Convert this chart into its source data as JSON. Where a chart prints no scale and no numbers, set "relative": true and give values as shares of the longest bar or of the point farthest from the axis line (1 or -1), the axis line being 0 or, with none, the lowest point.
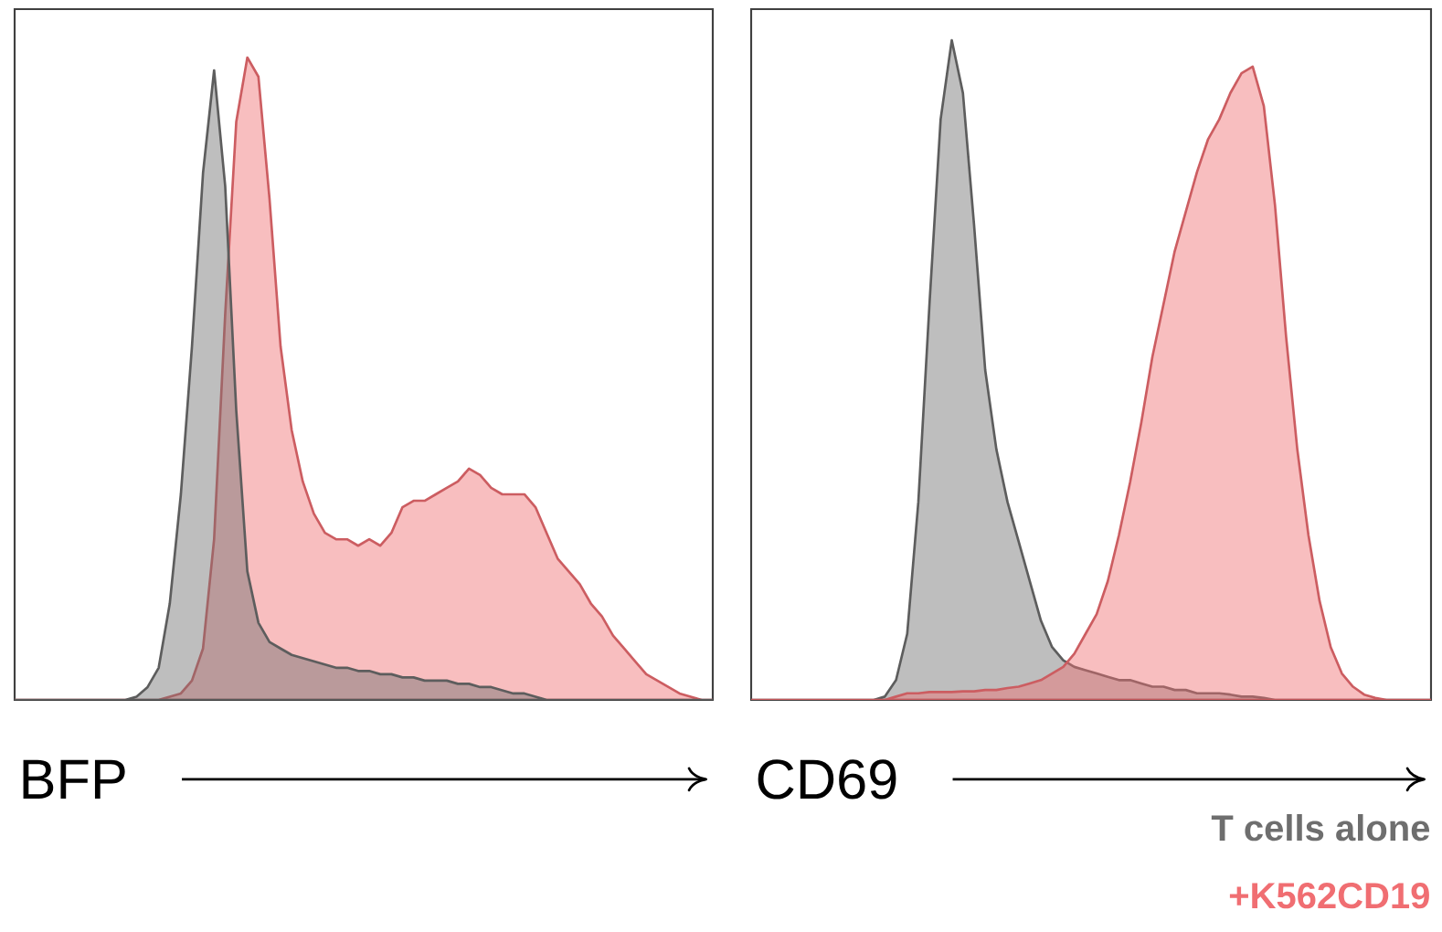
{
  "chart_data": [
    {
      "type": "area",
      "relative": true,
      "xlabel": "BFP",
      "categories": [
        null,
        null,
        null,
        null,
        null,
        null,
        null,
        null,
        null,
        null,
        null,
        null,
        null,
        null,
        null,
        null,
        null,
        null,
        null,
        null,
        null,
        null,
        null,
        null,
        null,
        null,
        null,
        null,
        null,
        null,
        null,
        null,
        null,
        null,
        null,
        null,
        null,
        null,
        null,
        null,
        null,
        null,
        null,
        null,
        null,
        null,
        null,
        null,
        null,
        null,
        null,
        null,
        null,
        null,
        null,
        null,
        null,
        null,
        null,
        null,
        null,
        null,
        null,
        null
      ],
      "series": [
        {
          "color": "#f06e72",
          "values": [
            0,
            0,
            0,
            0,
            0,
            0,
            0,
            0,
            0,
            0,
            0,
            0,
            0,
            0,
            0.005,
            0.01,
            0.03,
            0.08,
            0.25,
            0.6,
            0.9,
            1.0,
            0.97,
            0.78,
            0.55,
            0.42,
            0.34,
            0.29,
            0.26,
            0.25,
            0.25,
            0.24,
            0.25,
            0.24,
            0.26,
            0.3,
            0.31,
            0.31,
            0.32,
            0.33,
            0.34,
            0.36,
            0.35,
            0.33,
            0.32,
            0.32,
            0.32,
            0.3,
            0.26,
            0.22,
            0.2,
            0.18,
            0.15,
            0.13,
            0.1,
            0.08,
            0.06,
            0.04,
            0.03,
            0.02,
            0.01,
            0.005,
            0,
            0
          ]
        },
        {
          "color": "#6e6e6e",
          "values": [
            0,
            0,
            0,
            0,
            0,
            0,
            0,
            0,
            0,
            0,
            0,
            0.005,
            0.02,
            0.05,
            0.15,
            0.32,
            0.55,
            0.82,
            0.98,
            0.8,
            0.45,
            0.2,
            0.12,
            0.09,
            0.08,
            0.07,
            0.065,
            0.06,
            0.055,
            0.05,
            0.05,
            0.045,
            0.045,
            0.04,
            0.04,
            0.035,
            0.035,
            0.03,
            0.03,
            0.03,
            0.025,
            0.025,
            0.02,
            0.02,
            0.015,
            0.01,
            0.01,
            0.005,
            0,
            0,
            0,
            0,
            0,
            0,
            0,
            0,
            0,
            0,
            0,
            0,
            0,
            0,
            0,
            0
          ]
        }
      ]
    },
    {
      "type": "area",
      "relative": true,
      "xlabel": "CD69",
      "legend": "bottom right",
      "categories": [
        null,
        null,
        null,
        null,
        null,
        null,
        null,
        null,
        null,
        null,
        null,
        null,
        null,
        null,
        null,
        null,
        null,
        null,
        null,
        null,
        null,
        null,
        null,
        null,
        null,
        null,
        null,
        null,
        null,
        null,
        null,
        null,
        null,
        null,
        null,
        null,
        null,
        null,
        null,
        null,
        null,
        null,
        null,
        null,
        null,
        null,
        null,
        null,
        null,
        null,
        null,
        null,
        null,
        null,
        null,
        null,
        null,
        null,
        null,
        null,
        null,
        null
      ],
      "series": [
        {
          "name": "T cells alone",
          "color": "#6e6e6e",
          "values": [
            0,
            0,
            0,
            0,
            0,
            0,
            0,
            0,
            0,
            0,
            0,
            0,
            0.005,
            0.03,
            0.1,
            0.3,
            0.6,
            0.88,
            1.0,
            0.92,
            0.72,
            0.5,
            0.38,
            0.3,
            0.24,
            0.18,
            0.12,
            0.08,
            0.06,
            0.05,
            0.045,
            0.04,
            0.035,
            0.03,
            0.03,
            0.025,
            0.02,
            0.02,
            0.015,
            0.015,
            0.01,
            0.01,
            0.01,
            0.008,
            0.005,
            0.005,
            0.003,
            0,
            0,
            0,
            0,
            0,
            0,
            0,
            0,
            0,
            0,
            0,
            0,
            0,
            0,
            0
          ]
        },
        {
          "name": "+K562CD19",
          "color": "#f06e72",
          "values": [
            0,
            0,
            0,
            0,
            0,
            0,
            0,
            0,
            0,
            0,
            0,
            0,
            0,
            0.005,
            0.01,
            0.01,
            0.012,
            0.012,
            0.012,
            0.013,
            0.013,
            0.015,
            0.015,
            0.018,
            0.02,
            0.025,
            0.03,
            0.04,
            0.05,
            0.07,
            0.1,
            0.13,
            0.18,
            0.25,
            0.33,
            0.42,
            0.52,
            0.6,
            0.68,
            0.74,
            0.8,
            0.85,
            0.88,
            0.92,
            0.95,
            0.96,
            0.9,
            0.75,
            0.55,
            0.38,
            0.25,
            0.15,
            0.08,
            0.04,
            0.02,
            0.008,
            0.003,
            0,
            0,
            0,
            0,
            0
          ]
        }
      ]
    }
  ]
}
